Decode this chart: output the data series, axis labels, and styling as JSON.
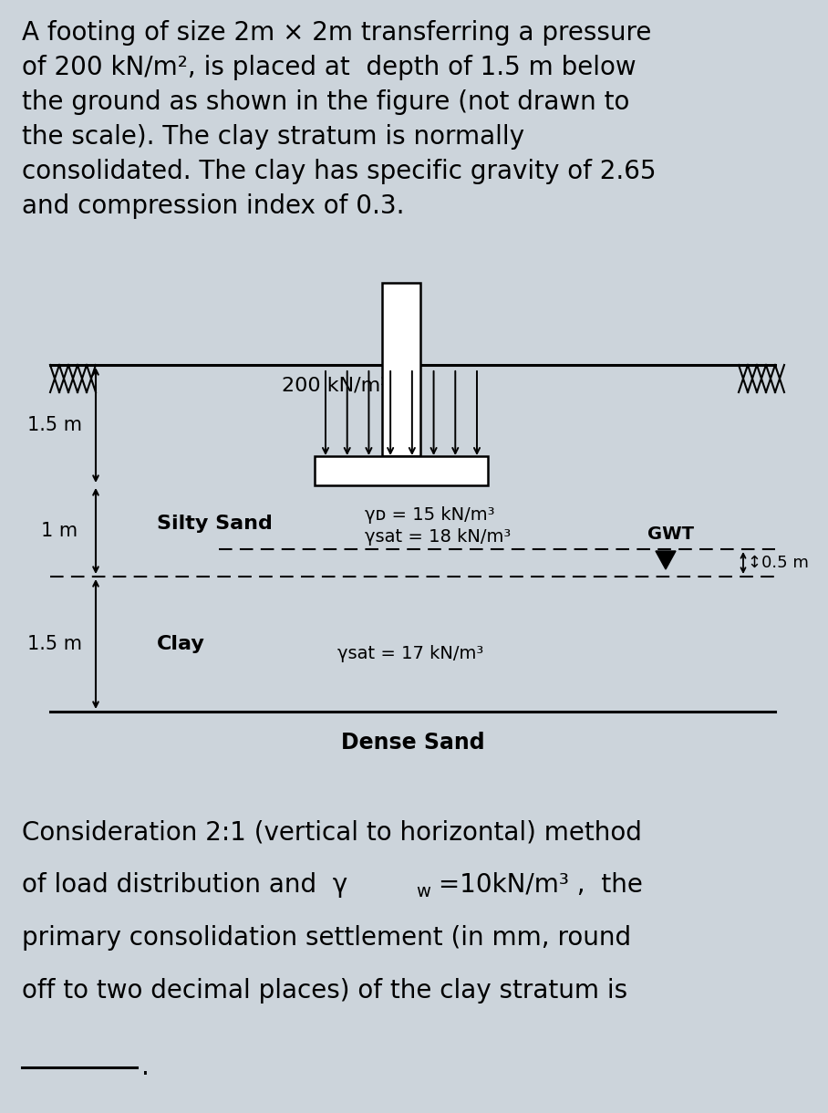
{
  "bg_color": "#ccd4db",
  "title_text_lines": [
    "A footing of size 2m × 2m transferring a pressure",
    "of 200 kN/m², is placed at  depth of 1.5 m below",
    "the ground as shown in the figure (not drawn to",
    "the scale). The clay stratum is normally",
    "consolidated. The clay has specific gravity of 2.65",
    "and compression index of 0.3."
  ],
  "label_200": "200 kN/m²",
  "label_1p5m_top": "1.5 m",
  "label_1m": "1 m",
  "label_1p5m_bot": "1.5 m",
  "label_silty_sand": "Silty Sand",
  "label_yd": "γᴅ = 15 kN/m³",
  "label_ysat_sand": "γsat = 18 kN/m³",
  "label_gwt": "GWT",
  "label_0p5m": "↕0.5 m",
  "label_clay": "Clay",
  "label_ysat_clay": "γsat = 17 kN/m³",
  "label_dense_sand": "Dense Sand",
  "bottom_line1": "Consideration 2:1 (vertical to horizontal) method",
  "bottom_line2a": "of load distribution and  γ",
  "bottom_line2b": "w",
  "bottom_line2c": " =10kN/m³ ,  the",
  "bottom_line3": "primary consolidation settlement (in mm, round",
  "bottom_line4": "off to two decimal places) of the clay stratum is"
}
